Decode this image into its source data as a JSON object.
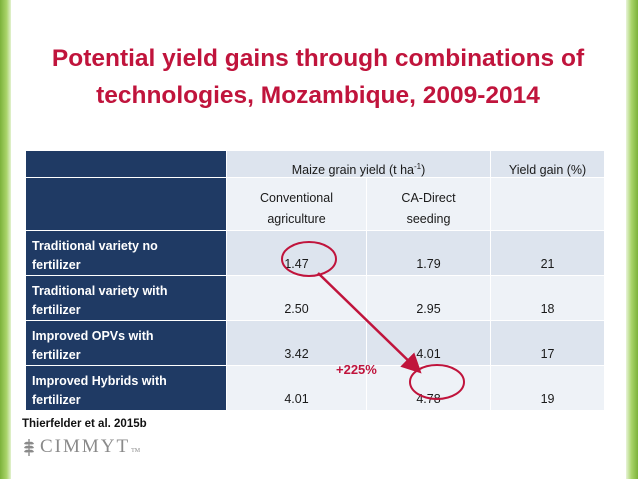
{
  "slide": {
    "title_line1": "Potential yield gains through combinations of",
    "title_line2": "technologies, Mozambique, 2009-2014",
    "citation": "Thierfelder  et al. 2015b",
    "logo_text": "CIMMYT",
    "logo_tm": "TM",
    "gain_annotation": "+225%"
  },
  "table": {
    "header1": {
      "yield_label": "Maize grain yield (t ha",
      "yield_sup": "-1",
      "yield_close": ")",
      "gain_label": "Yield gain (%)"
    },
    "header2": {
      "conv_line1": "Conventional",
      "conv_line2": "agriculture",
      "ca_line1": "CA-Direct",
      "ca_line2": "seeding"
    },
    "rows": [
      {
        "line1": "Traditional variety no",
        "line2": "fertilizer",
        "conventional": "1.47",
        "ca": "1.79",
        "gain": "21"
      },
      {
        "line1": "Traditional variety with",
        "line2": "fertilizer",
        "conventional": "2.50",
        "ca": "2.95",
        "gain": "18"
      },
      {
        "line1": "Improved OPVs with",
        "line2": "fertilizer",
        "conventional": "3.42",
        "ca": "4.01",
        "gain": "17"
      },
      {
        "line1": "Improved Hybrids with",
        "line2": "fertilizer",
        "conventional": "4.01",
        "ca": "4.78",
        "gain": "19"
      }
    ]
  },
  "colors": {
    "title": "#c0143c",
    "header_dark": "#1f3a64",
    "cell_light": "#dde4ee",
    "cell_lighter": "#eef2f7",
    "accent_green": "#7cb23a"
  },
  "icons": {
    "logo_mark": "wheat-icon"
  }
}
